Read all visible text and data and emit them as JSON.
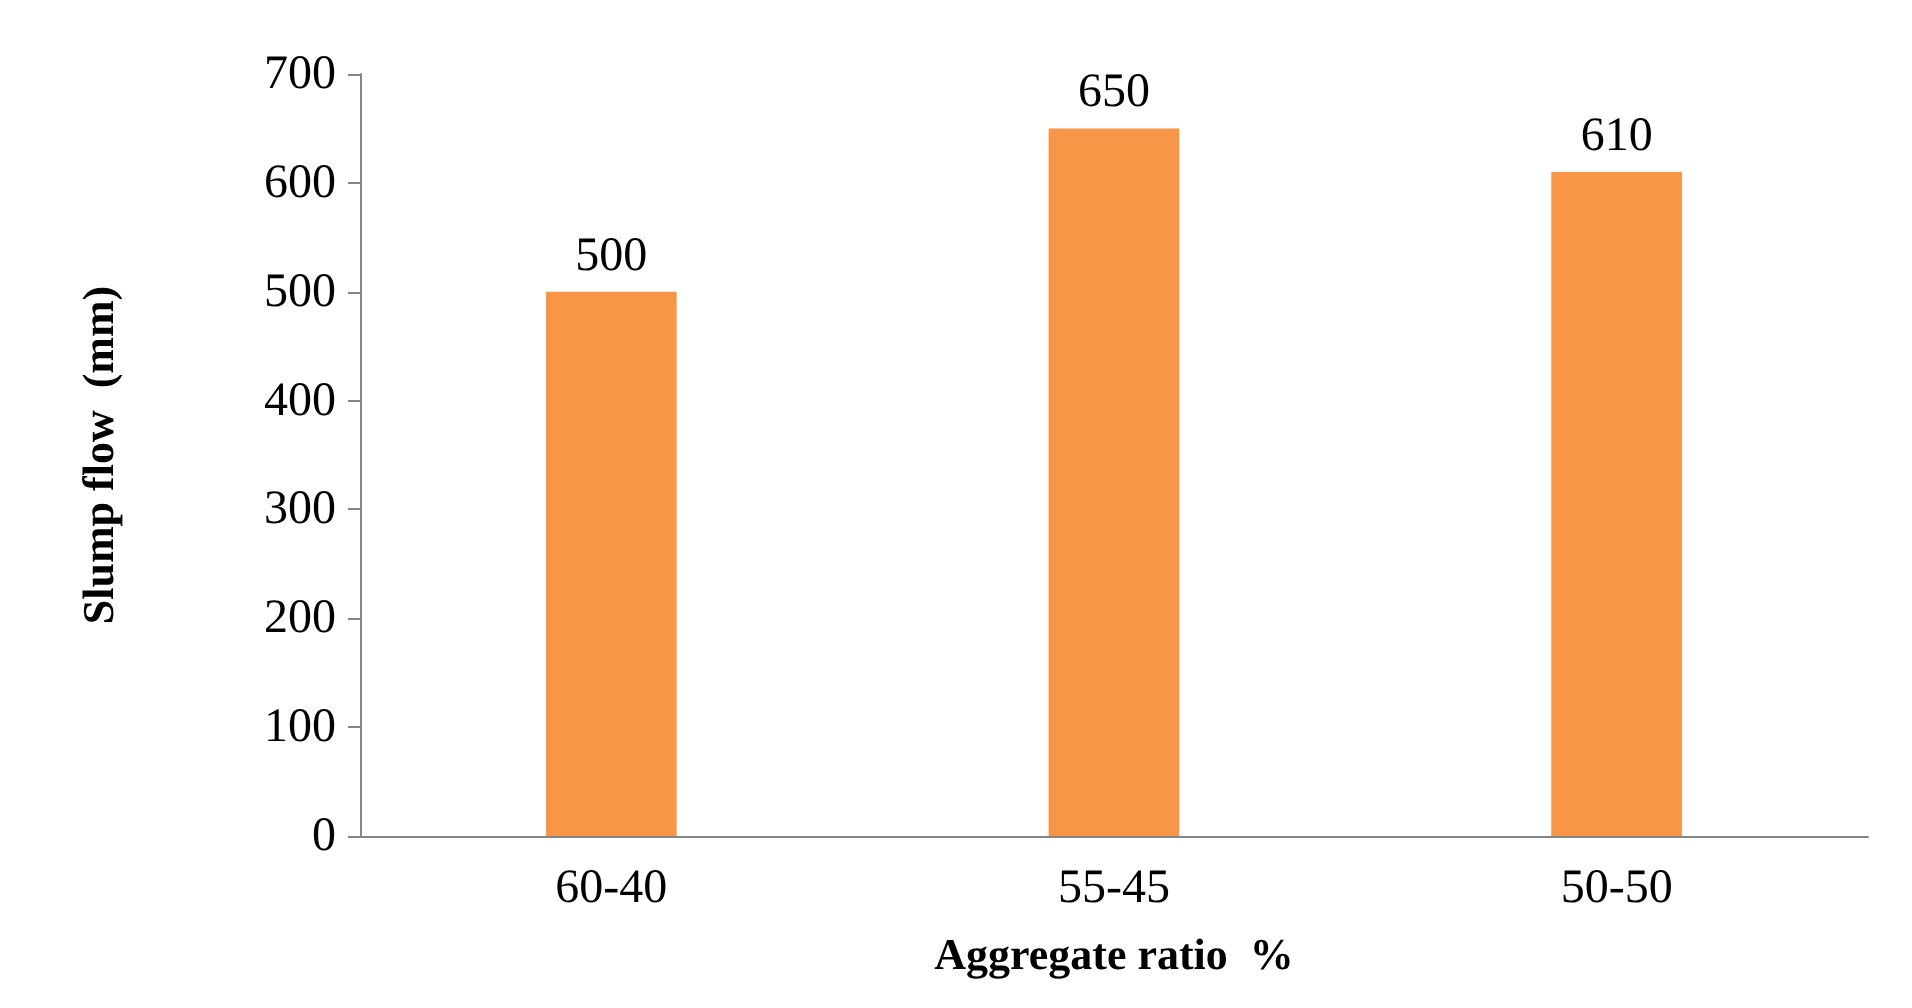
{
  "chart_data": {
    "type": "bar",
    "xlabel": "Aggregate ratio  %",
    "ylabel": "Slump flow  (mm)",
    "categories": [
      "60-40",
      "55-45",
      "50-50"
    ],
    "values": [
      500,
      650,
      610
    ],
    "color": "#f79646",
    "ylim": [
      0,
      700
    ],
    "yticks": [
      0,
      100,
      200,
      300,
      400,
      500,
      600,
      700
    ],
    "grid": false,
    "data_labels": true
  }
}
